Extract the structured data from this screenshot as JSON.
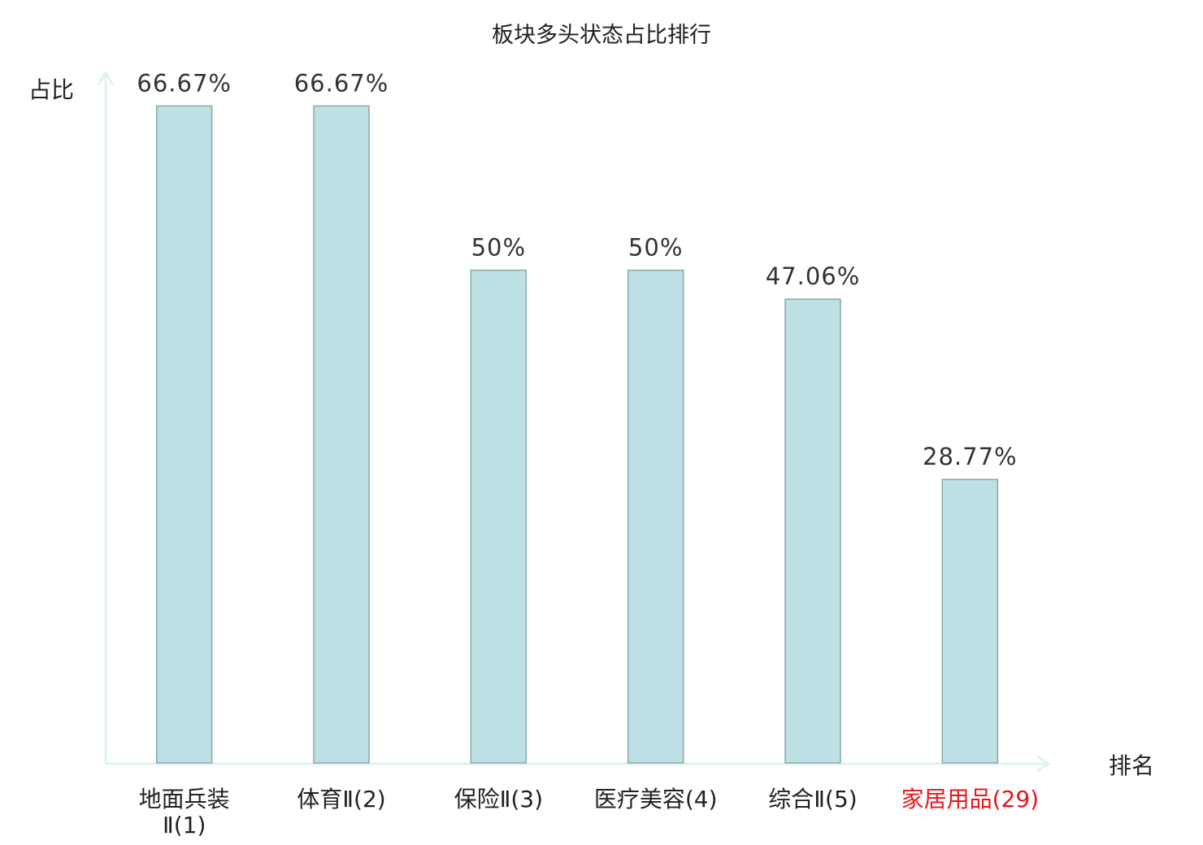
{
  "chart_data": {
    "type": "bar",
    "title": "板块多头状态占比排行",
    "xlabel": "排名",
    "ylabel": "占比",
    "categories": [
      "地面兵装Ⅱ(1)",
      "体育Ⅱ(2)",
      "保险Ⅱ(3)",
      "医疗美容(4)",
      "综合Ⅱ(5)",
      "家居用品(29)"
    ],
    "category_lines": [
      [
        "地面兵装",
        "Ⅱ(1)"
      ],
      [
        "体育Ⅱ(2)"
      ],
      [
        "保险Ⅱ(3)"
      ],
      [
        "医疗美容(4)"
      ],
      [
        "综合Ⅱ(5)"
      ],
      [
        "家居用品(29)"
      ]
    ],
    "values": [
      66.67,
      66.67,
      50,
      50,
      47.06,
      28.77
    ],
    "data_labels": [
      "66.67%",
      "66.67%",
      "50%",
      "50%",
      "47.06%",
      "28.77%"
    ],
    "highlighted_category_index": 5,
    "ylim": [
      0,
      70
    ],
    "grid": false,
    "colors": {
      "bar_fill": "#bce0e3",
      "bar_stroke": "#8aa8aa",
      "axis": "#dff2f0",
      "highlight_label": "#e8161b",
      "text": "#222222"
    }
  }
}
